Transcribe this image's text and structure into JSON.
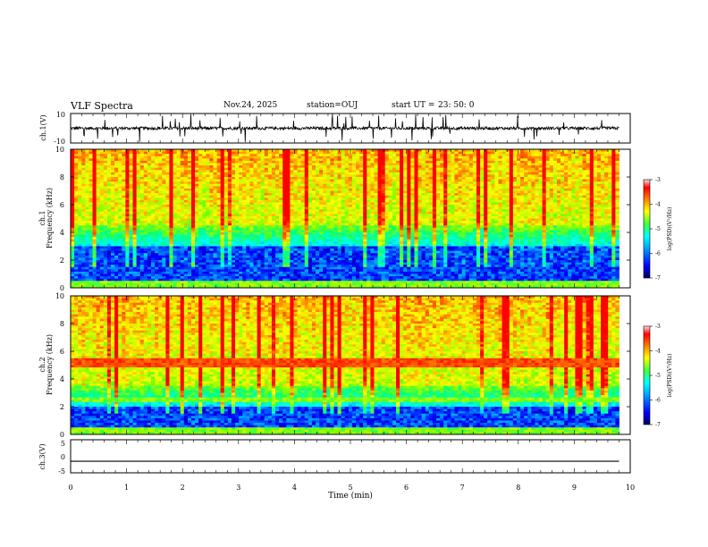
{
  "header": {
    "title": "VLF Spectra",
    "date": "Nov.24, 2025",
    "station": "station=OUJ",
    "start_label": "start  UT =",
    "start_value": "23: 50: 0"
  },
  "chart_data": [
    {
      "type": "line",
      "id": "ch1-waveform",
      "ylabel": "ch.1(V)",
      "ylim": [
        -10,
        10
      ],
      "y_ticks": [
        "10",
        "-10"
      ],
      "xlim": [
        0,
        10
      ],
      "baseline": 0,
      "noise_amplitude": 2,
      "series_color": "#000000"
    },
    {
      "type": "heatmap",
      "id": "ch1-spectrogram",
      "title": "ch.1",
      "ylabel": "Frequency  (kHz)",
      "ylim": [
        0,
        10
      ],
      "y_ticks": [
        "0",
        "2",
        "4",
        "6",
        "8",
        "10"
      ],
      "xlim": [
        0,
        9.8
      ],
      "colorbar": {
        "label": "log(PSD)(V²/Hz)",
        "range": [
          -7,
          -3
        ],
        "ticks": [
          "-3",
          "-4",
          "-5",
          "-6",
          "-7"
        ]
      },
      "band_center_khz": 4.5
    },
    {
      "type": "heatmap",
      "id": "ch2-spectrogram",
      "title": "ch.2",
      "ylabel": "Frequency  (kHz)",
      "ylim": [
        0,
        10
      ],
      "y_ticks": [
        "0",
        "2",
        "4",
        "6",
        "8",
        "10"
      ],
      "xlim": [
        0,
        9.8
      ],
      "colorbar": {
        "label": "log(PSD)(V²/Hz)",
        "range": [
          -7,
          -3
        ],
        "ticks": [
          "-3",
          "-4",
          "-5",
          "-6",
          "-7"
        ]
      },
      "band_center_khz": 3.5,
      "emission_line_khz": 5.2
    },
    {
      "type": "line",
      "id": "ch3-waveform",
      "ylabel": "ch.3(V)",
      "ylim": [
        -5,
        5
      ],
      "y_ticks": [
        "5",
        "0",
        "-5"
      ],
      "xlim": [
        0,
        10
      ],
      "x": [
        0,
        9.8
      ],
      "y": [
        -1.5,
        -1.5
      ],
      "xlabel": "Time  (min)",
      "x_ticks": [
        "0",
        "1",
        "2",
        "3",
        "4",
        "5",
        "6",
        "7",
        "8",
        "9",
        "10"
      ]
    }
  ],
  "colors": {
    "colormap": [
      "#000080",
      "#0000ff",
      "#0080ff",
      "#00ffff",
      "#00ff80",
      "#80ff00",
      "#ffff00",
      "#ff8000",
      "#ff0000",
      "#ffffff"
    ]
  }
}
